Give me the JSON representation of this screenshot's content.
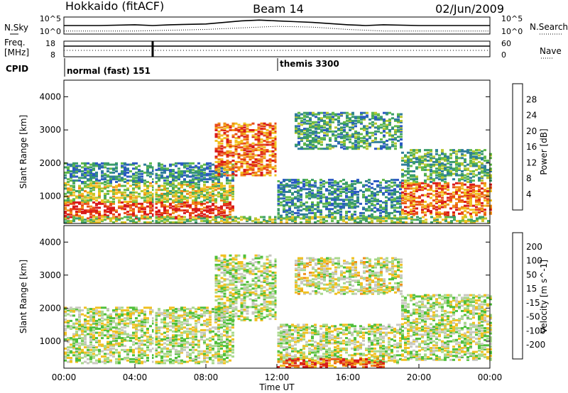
{
  "header": {
    "title_left": "Hokkaido (fitACF)",
    "title_center": "Beam 14",
    "title_right": "02/Jun/2009"
  },
  "side_labels": {
    "nsky": "N.Sky",
    "freq_top": "Freq.",
    "freq_unit": "[MHz]",
    "cpid": "CPID",
    "nsearch": "N.Search",
    "nave": "Nave"
  },
  "chart_data": [
    {
      "id": "noise",
      "type": "line",
      "left_ticks": [
        "10^5",
        "10^0"
      ],
      "right_ticks": [
        "10^5",
        "10^0"
      ],
      "note": "Sky noise (solid) and search noise (dotted); elevated 08:00-16:00",
      "series": [
        {
          "style": "solid",
          "x": [
            0,
            2,
            4,
            5,
            6,
            8,
            10,
            11,
            12,
            13,
            14,
            16,
            17,
            18,
            20,
            22,
            24
          ],
          "y": [
            0.5,
            0.5,
            0.55,
            0.5,
            0.55,
            0.6,
            0.8,
            0.85,
            0.8,
            0.75,
            0.7,
            0.55,
            0.5,
            0.55,
            0.5,
            0.5,
            0.5
          ]
        },
        {
          "style": "dotted",
          "x": [
            0,
            4,
            8,
            10,
            12,
            14,
            16,
            18,
            20,
            24
          ],
          "y": [
            0.15,
            0.15,
            0.25,
            0.35,
            0.45,
            0.4,
            0.25,
            0.15,
            0.15,
            0.15
          ]
        }
      ]
    },
    {
      "id": "freq",
      "type": "line",
      "left_ticks": [
        "18",
        "8"
      ],
      "right_ticks": [
        "60",
        "0"
      ],
      "note": "Transmitter frequency (solid) and number of averages (dotted)"
    },
    {
      "id": "cpid",
      "type": "table",
      "segments": [
        {
          "start": 0.0,
          "label": "normal (fast) 151"
        },
        {
          "start": 12.0,
          "label": "themis 3300"
        }
      ]
    },
    {
      "id": "power",
      "type": "heatmap",
      "ylabel": "Slant Range [km]",
      "yticks": [
        1000,
        2000,
        3000,
        4000
      ],
      "ylim": [
        180,
        4500
      ],
      "xlim": [
        0,
        24
      ],
      "colorbar": {
        "label": "Power [dB]",
        "ticks": [
          "4",
          "8",
          "12",
          "16",
          "20",
          "24",
          "28"
        ],
        "colors": [
          "#1a1ae0",
          "#2b59c3",
          "#2f7d9a",
          "#3a9c6a",
          "#5fb84a",
          "#b8c830",
          "#f0c020",
          "#f08a18",
          "#e84a18",
          "#d81a1a"
        ]
      },
      "regions": [
        {
          "t0": 0,
          "t1": 9.5,
          "r0": 300,
          "r1": 800,
          "val": 0.9
        },
        {
          "t0": 0,
          "t1": 9.5,
          "r0": 800,
          "r1": 1400,
          "val": 0.55
        },
        {
          "t0": 0,
          "t1": 9.5,
          "r0": 1400,
          "r1": 2000,
          "val": 0.3
        },
        {
          "t0": 8.5,
          "t1": 12.0,
          "r0": 1600,
          "r1": 3200,
          "val": 0.8
        },
        {
          "t0": 12.0,
          "t1": 19.0,
          "r0": 300,
          "r1": 1500,
          "val": 0.3
        },
        {
          "t0": 13.0,
          "t1": 19.0,
          "r0": 2400,
          "r1": 3500,
          "val": 0.35
        },
        {
          "t0": 19.0,
          "t1": 24.0,
          "r0": 400,
          "r1": 1400,
          "val": 0.8
        },
        {
          "t0": 19.0,
          "t1": 24.0,
          "r0": 1400,
          "r1": 2400,
          "val": 0.4
        },
        {
          "t0": 0,
          "t1": 24.0,
          "r0": 180,
          "r1": 350,
          "val": 0.5
        }
      ]
    },
    {
      "id": "velocity",
      "type": "heatmap",
      "ylabel": "Slant Range [km]",
      "yticks": [
        1000,
        2000,
        3000,
        4000
      ],
      "ylim": [
        180,
        4500
      ],
      "xlim": [
        0,
        24
      ],
      "xticks": [
        "00:00",
        "04:00",
        "08:00",
        "12:00",
        "16:00",
        "20:00",
        "00:00"
      ],
      "xlabel": "Time UT",
      "colorbar": {
        "label": "Velocity [m s^-1]",
        "ticks": [
          "200",
          "100",
          "50",
          "15",
          "-15",
          "-50",
          "-100",
          "-200"
        ],
        "colors": [
          "#2040c0",
          "#3f6fd0",
          "#2f8a6a",
          "#4fbf3a",
          "#a8d88a",
          "#c8c8c0",
          "#f0c020",
          "#f09018",
          "#e85818",
          "#d81a1a"
        ]
      },
      "regions": [
        {
          "t0": 0,
          "t1": 9.5,
          "r0": 300,
          "r1": 2000,
          "val": 0.5
        },
        {
          "t0": 8.5,
          "t1": 12.0,
          "r0": 1600,
          "r1": 3600,
          "val": 0.5
        },
        {
          "t0": 12.0,
          "t1": 19.0,
          "r0": 300,
          "r1": 1500,
          "val": 0.5
        },
        {
          "t0": 13.0,
          "t1": 19.0,
          "r0": 2400,
          "r1": 3500,
          "val": 0.55
        },
        {
          "t0": 19.0,
          "t1": 24.0,
          "r0": 400,
          "r1": 2400,
          "val": 0.5
        },
        {
          "t0": 12.0,
          "t1": 18.0,
          "r0": 180,
          "r1": 450,
          "val": 0.85
        }
      ]
    }
  ]
}
